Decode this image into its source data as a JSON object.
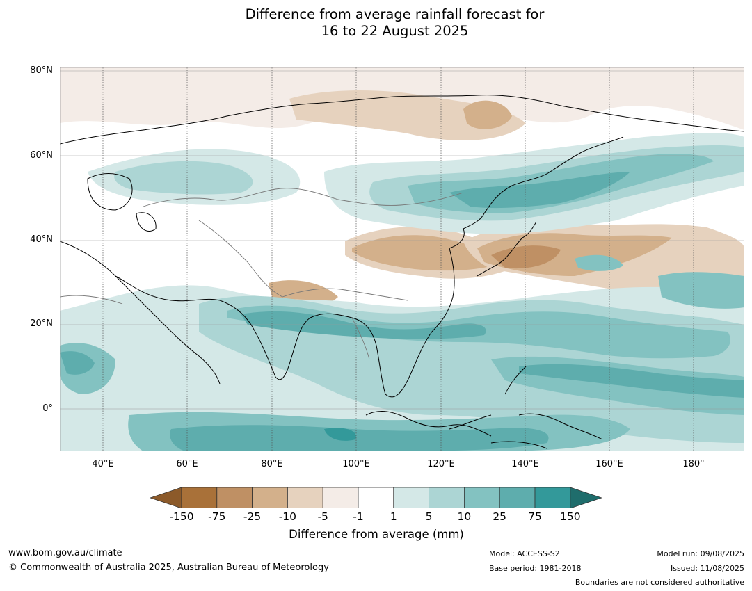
{
  "title_line1": "Difference from average rainfall forecast for",
  "title_line2": "16 to 22 August 2025",
  "lat_labels": [
    "80°N",
    "60°N",
    "40°N",
    "20°N",
    "0°"
  ],
  "lon_labels": [
    "40°E",
    "60°E",
    "80°E",
    "100°E",
    "120°E",
    "140°E",
    "160°E",
    "180°"
  ],
  "colorbar": {
    "title": "Difference from average (mm)",
    "ticks": [
      "-150",
      "-75",
      "-25",
      "-10",
      "-5",
      "-1",
      "1",
      "5",
      "10",
      "25",
      "75",
      "150"
    ],
    "colors": [
      "#8c5a2a",
      "#a97139",
      "#bf9064",
      "#d3b08b",
      "#e6d2be",
      "#f4ece7",
      "#ffffff",
      "#d4e8e7",
      "#acd5d4",
      "#83c2c1",
      "#5eadad",
      "#33999a",
      "#1f6d6c"
    ]
  },
  "footer": {
    "website": "www.bom.gov.au/climate",
    "copyright": "© Commonwealth of Australia 2025, Australian Bureau of Meteorology",
    "model": "Model: ACCESS-S2",
    "base_period": "Base period: 1981-2018",
    "model_run": "Model run: 09/08/2025",
    "issued": "Issued: 11/08/2025",
    "boundaries_note": "Boundaries are not considered authoritative"
  }
}
